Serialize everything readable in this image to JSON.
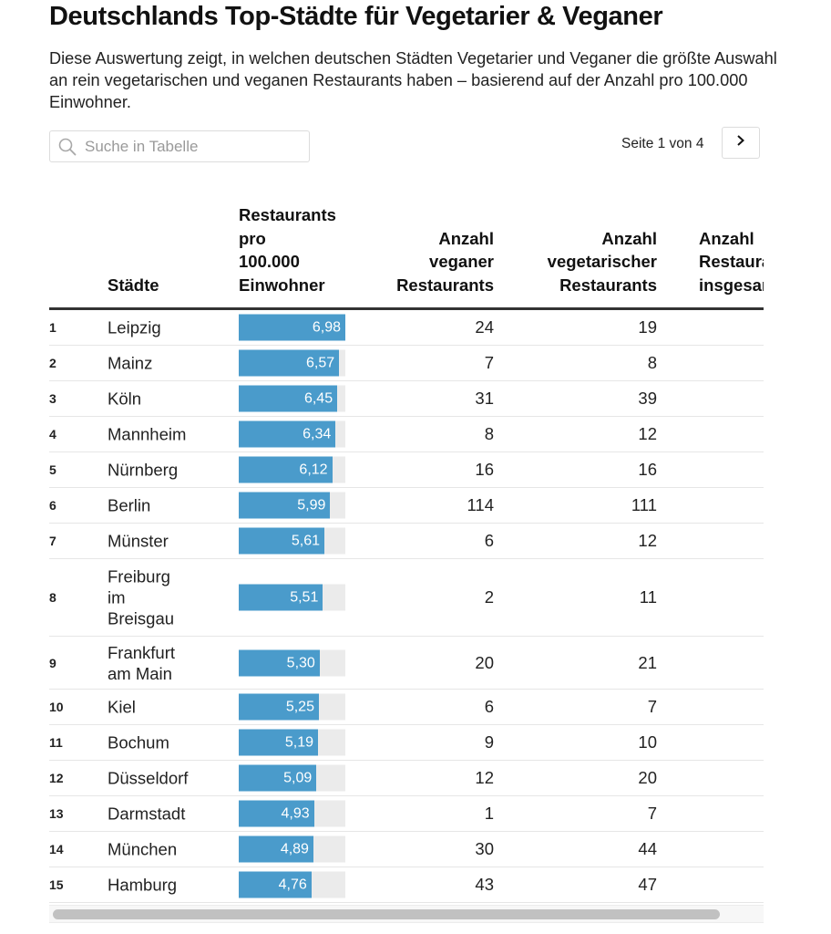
{
  "header": {
    "title": "Deutschlands Top-Städte für Vegetarier & Veganer",
    "description": "Diese Auswertung zeigt, in welchen deutschen Städten Vegetarier und Veganer die größte Auswahl an rein vegetarischen und veganen Restaurants haben – basierend auf der Anzahl pro 100.000 Einwohner."
  },
  "search": {
    "icon": "search-icon",
    "placeholder": "Suche in Tabelle",
    "value": ""
  },
  "pagination": {
    "label": "Seite 1 von 4",
    "current_page": 1,
    "total_pages": 4,
    "next_icon": "chevron-right-icon"
  },
  "colors": {
    "bar": "#4a9bcb",
    "bar_track": "#ebebeb"
  },
  "table": {
    "columns": {
      "city": "Städte",
      "ratio": "Restaurants\npro\n100.000\nEinwohner",
      "vegan": "Anzahl\nveganer\nRestaurants",
      "vegetarian": "Anzahl\nvegetarischer\nRestaurants",
      "total": "Anzahl\nRestaurants\ninsgesamt"
    },
    "ratio_max": 6.98,
    "rows": [
      {
        "rank": "1",
        "city": "Leipzig",
        "ratio": 6.98,
        "ratio_label": "6,98",
        "vegan": "24",
        "vegetarian": "19"
      },
      {
        "rank": "2",
        "city": "Mainz",
        "ratio": 6.57,
        "ratio_label": "6,57",
        "vegan": "7",
        "vegetarian": "8"
      },
      {
        "rank": "3",
        "city": "Köln",
        "ratio": 6.45,
        "ratio_label": "6,45",
        "vegan": "31",
        "vegetarian": "39"
      },
      {
        "rank": "4",
        "city": "Mannheim",
        "ratio": 6.34,
        "ratio_label": "6,34",
        "vegan": "8",
        "vegetarian": "12"
      },
      {
        "rank": "5",
        "city": "Nürnberg",
        "ratio": 6.12,
        "ratio_label": "6,12",
        "vegan": "16",
        "vegetarian": "16"
      },
      {
        "rank": "6",
        "city": "Berlin",
        "ratio": 5.99,
        "ratio_label": "5,99",
        "vegan": "114",
        "vegetarian": "111"
      },
      {
        "rank": "7",
        "city": "Münster",
        "ratio": 5.61,
        "ratio_label": "5,61",
        "vegan": "6",
        "vegetarian": "12"
      },
      {
        "rank": "8",
        "city": "Freiburg\nim\nBreisgau",
        "ratio": 5.51,
        "ratio_label": "5,51",
        "vegan": "2",
        "vegetarian": "11"
      },
      {
        "rank": "9",
        "city": "Frankfurt\nam Main",
        "ratio": 5.3,
        "ratio_label": "5,30",
        "vegan": "20",
        "vegetarian": "21"
      },
      {
        "rank": "10",
        "city": "Kiel",
        "ratio": 5.25,
        "ratio_label": "5,25",
        "vegan": "6",
        "vegetarian": "7"
      },
      {
        "rank": "11",
        "city": "Bochum",
        "ratio": 5.19,
        "ratio_label": "5,19",
        "vegan": "9",
        "vegetarian": "10"
      },
      {
        "rank": "12",
        "city": "Düsseldorf",
        "ratio": 5.09,
        "ratio_label": "5,09",
        "vegan": "12",
        "vegetarian": "20"
      },
      {
        "rank": "13",
        "city": "Darmstadt",
        "ratio": 4.93,
        "ratio_label": "4,93",
        "vegan": "1",
        "vegetarian": "7"
      },
      {
        "rank": "14",
        "city": "München",
        "ratio": 4.89,
        "ratio_label": "4,89",
        "vegan": "30",
        "vegetarian": "44"
      },
      {
        "rank": "15",
        "city": "Hamburg",
        "ratio": 4.76,
        "ratio_label": "4,76",
        "vegan": "43",
        "vegetarian": "47"
      }
    ]
  }
}
